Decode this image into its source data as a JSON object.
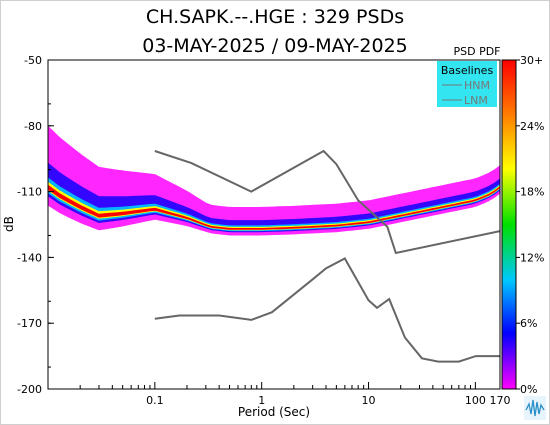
{
  "chart_data": {
    "type": "heatmap",
    "title": "CH.SAPK.--.HGE : 329 PSDs",
    "subtitle": "03-MAY-2025 / 09-MAY-2025",
    "xlabel": "Period (Sec)",
    "ylabel": "dB",
    "x_scale": "log",
    "xlim": [
      0.01,
      170
    ],
    "ylim": [
      -200,
      -50
    ],
    "x_ticks": [
      {
        "value": 0.1,
        "label": "0.1"
      },
      {
        "value": 1,
        "label": "1"
      },
      {
        "value": 10,
        "label": "10"
      },
      {
        "value": 100,
        "label": "100"
      },
      {
        "value": 170,
        "label": "170"
      }
    ],
    "y_ticks": [
      {
        "value": -50,
        "label": "-50"
      },
      {
        "value": -80,
        "label": "-80"
      },
      {
        "value": -110,
        "label": "-110"
      },
      {
        "value": -140,
        "label": "-140"
      },
      {
        "value": -170,
        "label": "-170"
      },
      {
        "value": -200,
        "label": "-200"
      }
    ],
    "legend": {
      "title": "Baselines",
      "placement": "top-right",
      "background": "#33e5f0",
      "entries": [
        "HNM",
        "LNM"
      ]
    },
    "colorbar": {
      "title": "PSD PDF",
      "ticks": [
        "30+",
        "24%",
        "18%",
        "12%",
        "6%",
        "0%"
      ],
      "colors": [
        "#ff00ff",
        "#0000ff",
        "#00c8ff",
        "#00e000",
        "#ffff00",
        "#ff8000",
        "#ff0000"
      ]
    },
    "series": [
      {
        "name": "HNM",
        "color": "#666666",
        "x": [
          0.1,
          0.22,
          0.8,
          3.8,
          5,
          8,
          15,
          18,
          170
        ],
        "y": [
          -91.5,
          -97,
          -110,
          -91.5,
          -97.5,
          -114,
          -126,
          -138,
          -128
        ]
      },
      {
        "name": "LNM",
        "color": "#666666",
        "x": [
          0.1,
          0.17,
          0.4,
          0.8,
          1.25,
          3,
          4,
          6,
          10,
          12,
          15.6,
          21.9,
          31.6,
          45,
          70,
          101,
          170
        ],
        "y": [
          -168,
          -166.5,
          -166.5,
          -168.5,
          -165,
          -150,
          -145,
          -140.5,
          -159.5,
          -163,
          -159,
          -176.5,
          -186,
          -187.5,
          -187.5,
          -185,
          -185
        ]
      }
    ],
    "density_mode": [
      {
        "x": 0.01,
        "y": -108
      },
      {
        "x": 0.013,
        "y": -112
      },
      {
        "x": 0.02,
        "y": -117
      },
      {
        "x": 0.03,
        "y": -121
      },
      {
        "x": 0.05,
        "y": -120
      },
      {
        "x": 0.1,
        "y": -118
      },
      {
        "x": 0.2,
        "y": -122
      },
      {
        "x": 0.33,
        "y": -126
      },
      {
        "x": 0.5,
        "y": -127
      },
      {
        "x": 1,
        "y": -127
      },
      {
        "x": 2,
        "y": -126.5
      },
      {
        "x": 5,
        "y": -125.5
      },
      {
        "x": 10,
        "y": -124
      },
      {
        "x": 20,
        "y": -121
      },
      {
        "x": 50,
        "y": -117
      },
      {
        "x": 100,
        "y": -114
      },
      {
        "x": 140,
        "y": -111
      },
      {
        "x": 170,
        "y": -108
      }
    ]
  }
}
